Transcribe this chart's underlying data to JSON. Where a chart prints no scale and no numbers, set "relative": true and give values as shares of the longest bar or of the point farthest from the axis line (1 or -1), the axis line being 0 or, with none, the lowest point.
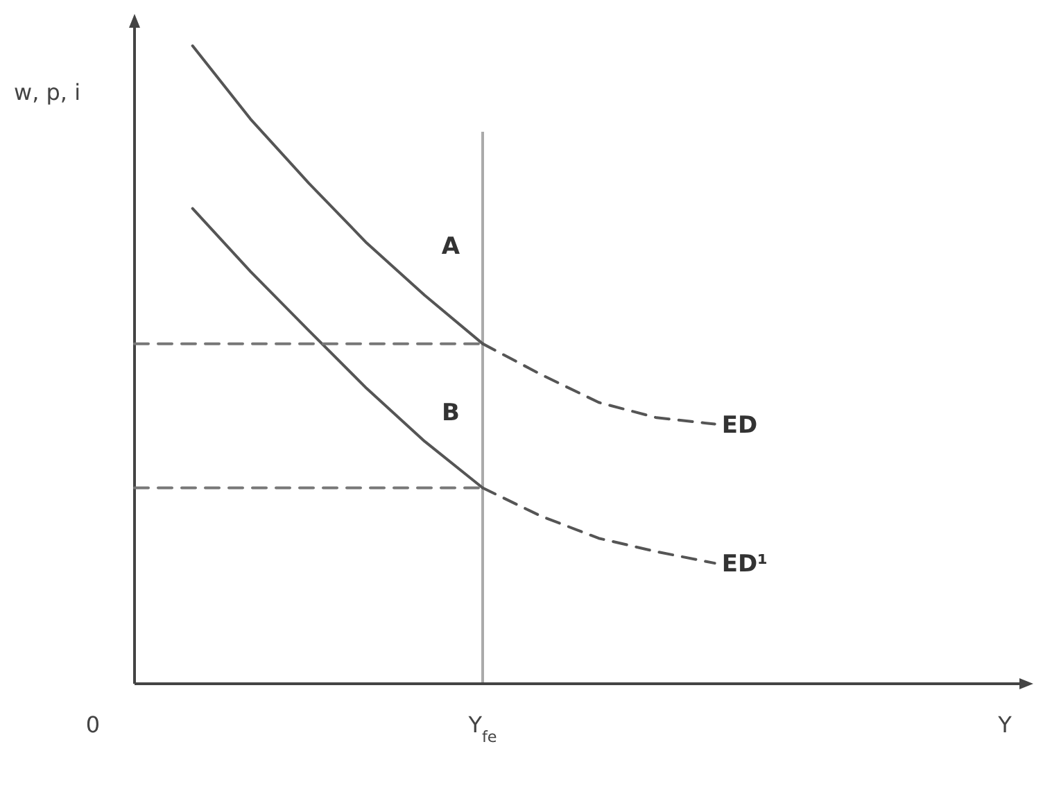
{
  "chart_data": {
    "type": "line",
    "relative": true,
    "ylabel": "w, p, i",
    "categories": [
      null,
      null,
      null,
      null,
      null,
      null,
      "Y$_{fe}$",
      null,
      null,
      null,
      null,
      null,
      null,
      null,
      null,
      "Y"
    ],
    "series": [
      {
        "color": "#555555",
        "line_style": "solid",
        "values": [
          null,
          1.0,
          0.885,
          0.785,
          0.691,
          0.609,
          0.533,
          null,
          null,
          null,
          null,
          null,
          null,
          null,
          null,
          null
        ]
      },
      {
        "name": "ED",
        "color": "#555555",
        "line_style": "dashed",
        "values": [
          null,
          null,
          null,
          null,
          null,
          null,
          0.533,
          0.485,
          0.441,
          0.417,
          0.407,
          null,
          null,
          null,
          null,
          null
        ]
      },
      {
        "color": "#555555",
        "line_style": "solid",
        "values": [
          null,
          0.745,
          0.646,
          0.554,
          0.463,
          0.38,
          0.307,
          null,
          null,
          null,
          null,
          null,
          null,
          null,
          null,
          null
        ]
      },
      {
        "name": "ED¹",
        "color": "#555555",
        "line_style": "dashed",
        "values": [
          null,
          null,
          null,
          null,
          null,
          null,
          0.307,
          0.263,
          0.228,
          0.207,
          0.189,
          null,
          null,
          null,
          null,
          null
        ]
      },
      {
        "color": "#777777",
        "line_style": "dashed",
        "values": [
          0.533,
          0.533,
          0.533,
          0.533,
          0.533,
          0.533,
          0.533,
          null,
          null,
          null,
          null,
          null,
          null,
          null,
          null,
          null
        ]
      },
      {
        "color": "#777777",
        "line_style": "dashed",
        "values": [
          0.307,
          0.307,
          0.307,
          0.307,
          0.307,
          0.307,
          0.307,
          null,
          null,
          null,
          null,
          null,
          null,
          null,
          null,
          null
        ]
      }
    ],
    "ref_lines": [
      {
        "axis": "x",
        "value": "Y$_{fe}$",
        "color": "#aaaaaa"
      }
    ],
    "annotations": [
      "A",
      "B",
      "0"
    ],
    "legend": false,
    "grid": false,
    "marker": "none"
  }
}
